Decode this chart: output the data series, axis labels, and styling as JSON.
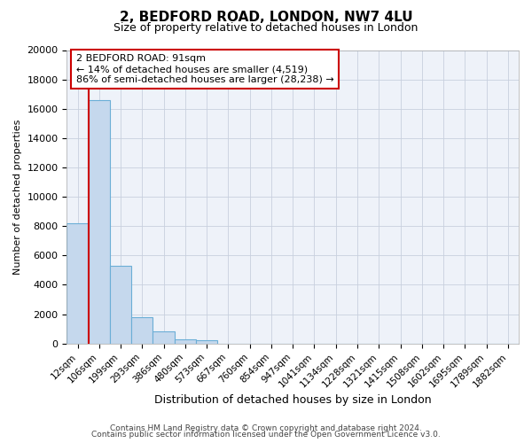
{
  "title": "2, BEDFORD ROAD, LONDON, NW7 4LU",
  "subtitle": "Size of property relative to detached houses in London",
  "xlabel": "Distribution of detached houses by size in London",
  "ylabel": "Number of detached properties",
  "bar_labels": [
    "12sqm",
    "106sqm",
    "199sqm",
    "293sqm",
    "386sqm",
    "480sqm",
    "573sqm",
    "667sqm",
    "760sqm",
    "854sqm",
    "947sqm",
    "1041sqm",
    "1134sqm",
    "1228sqm",
    "1321sqm",
    "1415sqm",
    "1508sqm",
    "1602sqm",
    "1695sqm",
    "1789sqm",
    "1882sqm"
  ],
  "bar_values": [
    8200,
    16600,
    5300,
    1800,
    800,
    300,
    250,
    0,
    0,
    0,
    0,
    0,
    0,
    0,
    0,
    0,
    0,
    0,
    0,
    0,
    0
  ],
  "bar_color": "#c5d8ed",
  "bar_edge_color": "#6baed6",
  "ylim": [
    0,
    20000
  ],
  "yticks": [
    0,
    2000,
    4000,
    6000,
    8000,
    10000,
    12000,
    14000,
    16000,
    18000,
    20000
  ],
  "property_line_color": "#cc0000",
  "annotation_title": "2 BEDFORD ROAD: 91sqm",
  "annotation_line1": "← 14% of detached houses are smaller (4,519)",
  "annotation_line2": "86% of semi-detached houses are larger (28,238) →",
  "footer1": "Contains HM Land Registry data © Crown copyright and database right 2024.",
  "footer2": "Contains public sector information licensed under the Open Government Licence v3.0.",
  "background_color": "#ffffff",
  "plot_background": "#eef2f9",
  "grid_color": "#c8d0de"
}
